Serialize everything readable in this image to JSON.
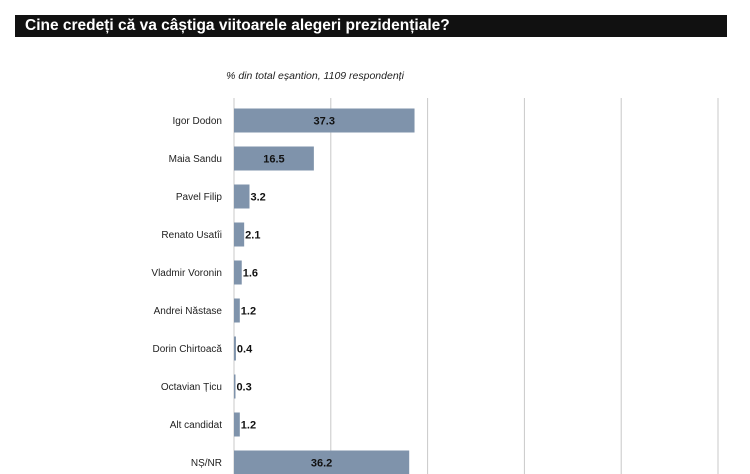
{
  "header": {
    "title": "Cine credeți că va câștiga viitoarele alegeri prezidențiale?"
  },
  "chart_data": {
    "type": "bar",
    "orientation": "horizontal",
    "subtitle": "% din total eșantion, 1109 respondenți",
    "categories": [
      "Igor Dodon",
      "Maia Sandu",
      "Pavel Filip",
      "Renato Usatîi",
      "Vladmir Voronin",
      "Andrei Năstase",
      "Dorin Chirtoacă",
      "Octavian Țicu",
      "Alt candidat",
      "NȘ/NR"
    ],
    "values": [
      37.3,
      16.5,
      3.2,
      2.1,
      1.6,
      1.2,
      0.4,
      0.3,
      1.2,
      36.2
    ],
    "xlim": [
      0,
      100
    ],
    "grid": true,
    "bar_color": "#7f93ab"
  }
}
